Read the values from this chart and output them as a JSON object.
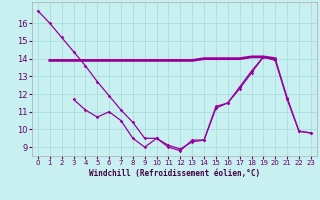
{
  "background_color": "#c8f0f0",
  "grid_color": "#aadddd",
  "line_color": "#990099",
  "xlabel": "Windchill (Refroidissement éolien,°C)",
  "ylim": [
    8.5,
    17.2
  ],
  "xlim": [
    -0.5,
    23.5
  ],
  "yticks": [
    9,
    10,
    11,
    12,
    13,
    14,
    15,
    16
  ],
  "xticks": [
    0,
    1,
    2,
    3,
    4,
    5,
    6,
    7,
    8,
    9,
    10,
    11,
    12,
    13,
    14,
    15,
    16,
    17,
    18,
    19,
    20,
    21,
    22,
    23
  ],
  "line1_x": [
    0,
    1,
    2,
    3,
    4,
    5,
    6,
    7,
    8,
    9,
    10,
    11,
    12,
    13,
    14,
    15,
    16,
    17,
    18,
    19,
    20,
    21,
    22,
    23
  ],
  "line1_y": [
    16.7,
    16.0,
    15.2,
    14.4,
    13.6,
    12.7,
    11.9,
    11.1,
    10.4,
    9.5,
    9.5,
    9.1,
    8.9,
    9.3,
    9.4,
    11.2,
    11.5,
    12.3,
    13.2,
    14.1,
    13.9,
    11.7,
    9.9,
    9.8
  ],
  "line2_x": [
    1,
    2,
    3,
    4,
    5,
    6,
    7,
    8,
    9,
    10,
    11,
    12,
    13,
    14,
    15,
    16,
    17,
    18,
    19,
    20
  ],
  "line2_y": [
    13.9,
    13.9,
    13.9,
    13.9,
    13.9,
    13.9,
    13.9,
    13.9,
    13.9,
    13.9,
    13.9,
    13.9,
    13.9,
    14.0,
    14.0,
    14.0,
    14.0,
    14.1,
    14.1,
    14.0
  ],
  "line3_x": [
    3,
    4,
    5,
    6,
    7,
    8,
    9,
    10,
    11,
    12,
    13,
    14,
    15,
    16,
    17,
    18,
    19,
    20,
    21,
    22,
    23
  ],
  "line3_y": [
    11.7,
    11.1,
    10.7,
    11.0,
    10.5,
    9.5,
    9.0,
    9.5,
    9.0,
    8.8,
    9.4,
    9.4,
    11.3,
    11.5,
    12.4,
    13.3,
    14.1,
    14.0,
    11.8,
    9.9,
    9.8
  ],
  "tick_fontsize": 5.5,
  "xlabel_fontsize": 5.5
}
